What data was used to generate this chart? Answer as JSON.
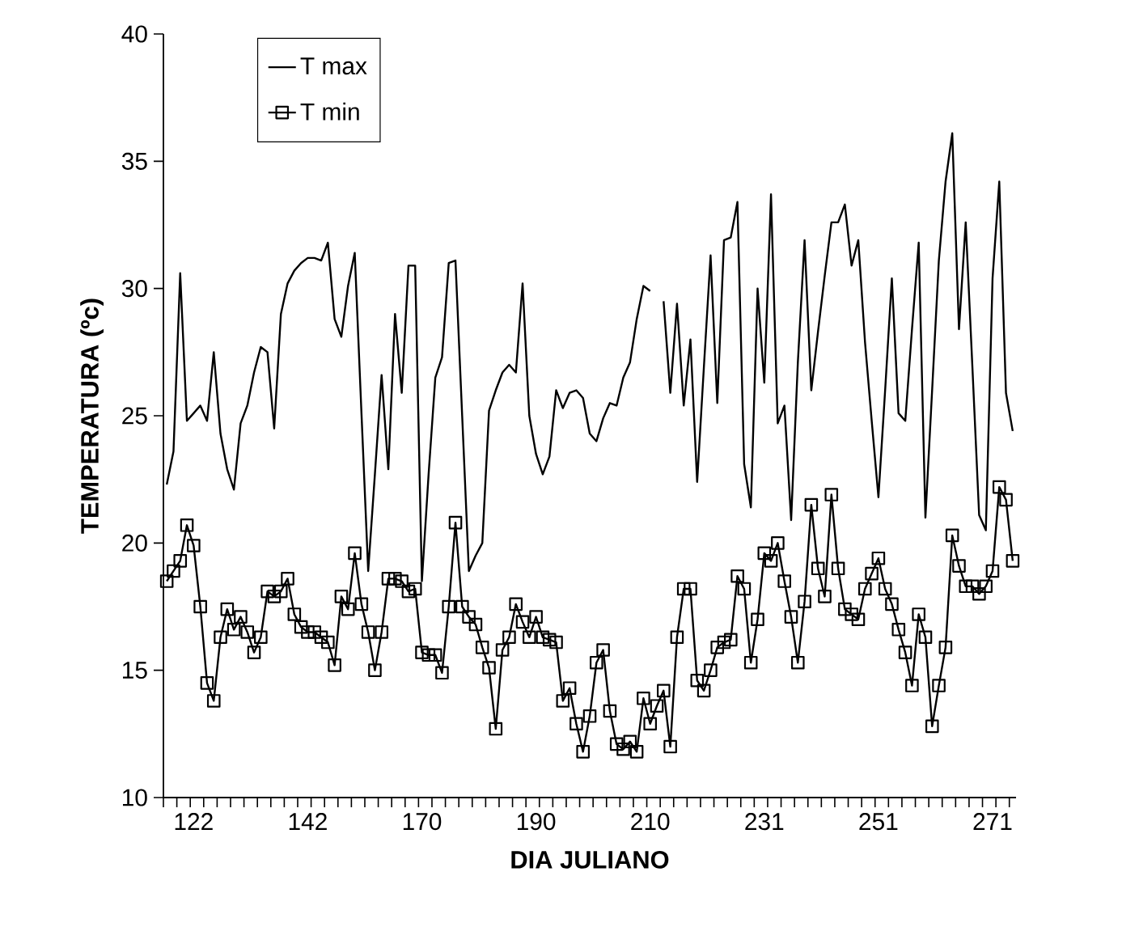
{
  "chart_data": {
    "type": "line",
    "xlabel": "DIA JULIANO",
    "ylabel": "TEMPERATURA (ºc)",
    "categories": [
      null,
      null,
      null,
      null,
      "122",
      null,
      null,
      null,
      null,
      null,
      null,
      null,
      null,
      null,
      null,
      null,
      null,
      null,
      null,
      null,
      null,
      "142",
      null,
      null,
      null,
      null,
      null,
      null,
      null,
      null,
      null,
      null,
      null,
      null,
      null,
      null,
      null,
      null,
      "170",
      null,
      null,
      null,
      null,
      null,
      null,
      null,
      null,
      null,
      null,
      null,
      null,
      null,
      null,
      null,
      null,
      "190",
      null,
      null,
      null,
      null,
      null,
      null,
      null,
      null,
      null,
      null,
      null,
      null,
      null,
      null,
      null,
      null,
      "210",
      null,
      null,
      null,
      null,
      null,
      null,
      null,
      null,
      null,
      null,
      null,
      null,
      null,
      null,
      null,
      null,
      "231",
      null,
      null,
      null,
      null,
      null,
      null,
      null,
      null,
      null,
      null,
      null,
      null,
      null,
      null,
      null,
      null,
      "251",
      null,
      null,
      null,
      null,
      null,
      null,
      null,
      null,
      null,
      null,
      null,
      null,
      null,
      null,
      null,
      null,
      "271",
      null,
      null,
      null
    ],
    "series": [
      {
        "name": "T max",
        "color": "#000000",
        "marker": "none",
        "values": [
          22.3,
          23.6,
          30.6,
          24.8,
          25.1,
          25.4,
          24.8,
          27.5,
          24.3,
          22.9,
          22.1,
          24.7,
          25.4,
          26.7,
          27.7,
          27.5,
          24.5,
          29.0,
          30.2,
          30.7,
          31.0,
          31.2,
          31.2,
          31.1,
          31.8,
          28.8,
          28.1,
          30.1,
          31.4,
          25.1,
          18.9,
          22.7,
          26.6,
          22.9,
          29.0,
          25.9,
          30.9,
          30.9,
          18.5,
          22.7,
          26.5,
          27.3,
          31.0,
          31.1,
          25.0,
          18.9,
          19.5,
          20.0,
          25.2,
          26.0,
          26.7,
          27.0,
          26.7,
          30.2,
          25.0,
          23.5,
          22.7,
          23.4,
          26.0,
          25.3,
          25.9,
          26.0,
          25.7,
          24.3,
          24.0,
          24.9,
          25.5,
          25.4,
          26.5,
          27.1,
          28.8,
          30.1,
          29.9,
          null,
          29.5,
          25.9,
          29.4,
          25.4,
          28.0,
          22.4,
          26.9,
          31.3,
          25.5,
          31.9,
          32.0,
          33.4,
          23.1,
          21.4,
          30.0,
          26.3,
          33.7,
          24.7,
          25.4,
          20.9,
          27.1,
          31.9,
          26.0,
          28.3,
          30.5,
          32.6,
          32.6,
          33.3,
          30.9,
          31.9,
          27.9,
          24.8,
          21.8,
          26.0,
          30.4,
          25.1,
          24.8,
          28.4,
          31.8,
          21.0,
          26.0,
          31.1,
          34.2,
          36.1,
          28.4,
          32.6,
          26.9,
          21.1,
          20.5,
          30.4,
          34.2,
          25.9,
          24.4
        ]
      },
      {
        "name": "T min",
        "color": "#000000",
        "marker": "square",
        "values": [
          18.5,
          18.9,
          19.3,
          20.7,
          19.9,
          17.5,
          14.5,
          13.8,
          16.3,
          17.4,
          16.6,
          17.1,
          16.5,
          15.7,
          16.3,
          18.1,
          17.9,
          18.1,
          18.6,
          17.2,
          16.7,
          16.5,
          16.5,
          16.3,
          16.1,
          15.2,
          17.9,
          17.4,
          19.6,
          17.6,
          16.5,
          15.0,
          16.5,
          18.6,
          18.6,
          18.5,
          18.1,
          18.2,
          15.7,
          15.6,
          15.6,
          14.9,
          17.5,
          20.8,
          17.5,
          17.1,
          16.8,
          15.9,
          15.1,
          12.7,
          15.8,
          16.3,
          17.6,
          16.9,
          16.3,
          17.1,
          16.3,
          16.2,
          16.1,
          13.8,
          14.3,
          12.9,
          11.8,
          13.2,
          15.3,
          15.8,
          13.4,
          12.1,
          11.9,
          12.2,
          11.8,
          13.9,
          12.9,
          13.6,
          14.2,
          12.0,
          16.3,
          18.2,
          18.2,
          14.6,
          14.2,
          15.0,
          15.9,
          16.1,
          16.2,
          18.7,
          18.2,
          15.3,
          17.0,
          19.6,
          19.3,
          20.0,
          18.5,
          17.1,
          15.3,
          17.7,
          21.5,
          19.0,
          17.9,
          21.9,
          19.0,
          17.4,
          17.2,
          17.0,
          18.2,
          18.8,
          19.4,
          18.2,
          17.6,
          16.6,
          15.7,
          14.4,
          17.2,
          16.3,
          12.8,
          14.4,
          15.9,
          20.3,
          19.1,
          18.3,
          18.3,
          18.0,
          18.3,
          18.9,
          22.2,
          21.7,
          19.3
        ]
      }
    ],
    "ylim": [
      10,
      40
    ],
    "yticks": [
      10,
      15,
      20,
      25,
      30,
      35,
      40
    ],
    "legend": "top left"
  }
}
